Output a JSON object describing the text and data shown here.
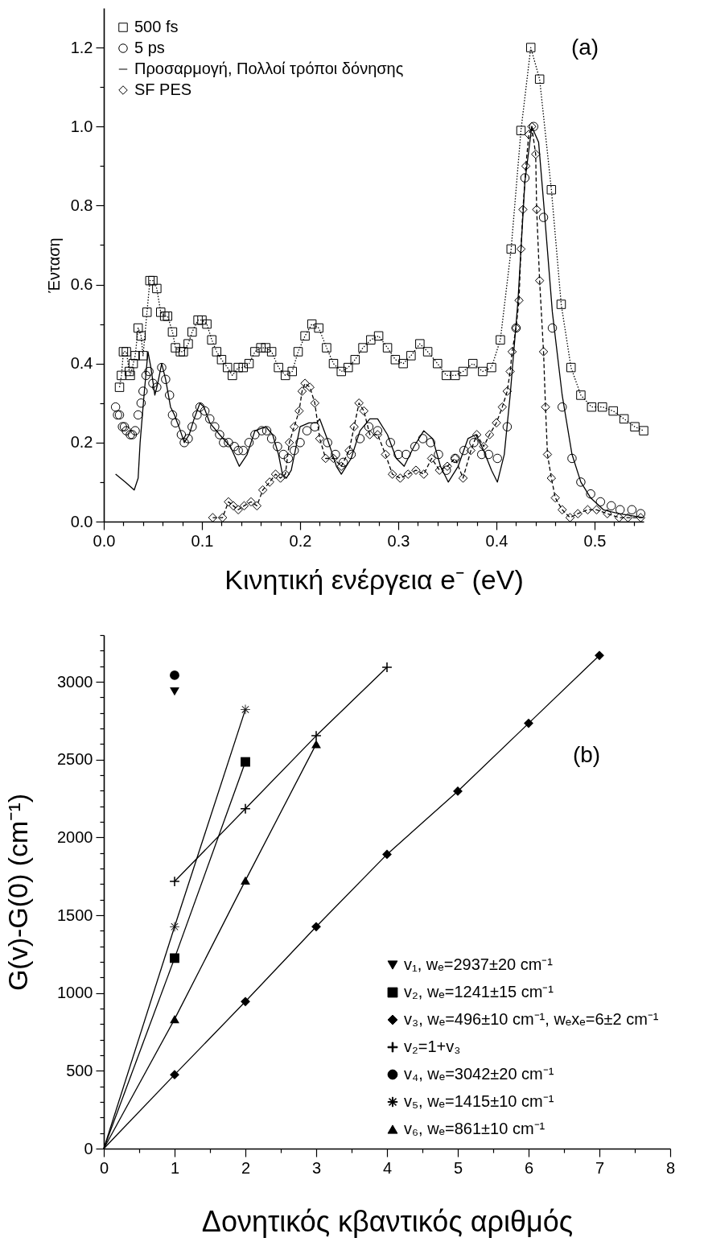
{
  "chart_data": [
    {
      "type": "line",
      "xlabel": "Κινητική ενέργεια e⁻ (eV)",
      "ylabel": "Ένταση",
      "xlim": [
        0,
        0.55
      ],
      "ylim": [
        0,
        1.3
      ],
      "xticks": [
        {
          "value": 0,
          "label": "0.0"
        },
        {
          "value": 0.02,
          "label": null
        },
        {
          "value": 0.04,
          "label": null
        },
        {
          "value": 0.06,
          "label": null
        },
        {
          "value": 0.08,
          "label": null
        },
        0.1,
        {
          "value": 0.12,
          "label": null
        },
        {
          "value": 0.14,
          "label": null
        },
        {
          "value": 0.16,
          "label": null
        },
        {
          "value": 0.18,
          "label": null
        },
        0.2,
        {
          "value": 0.22,
          "label": null
        },
        {
          "value": 0.24,
          "label": null
        },
        {
          "value": 0.26,
          "label": null
        },
        {
          "value": 0.28,
          "label": null
        },
        0.3,
        {
          "value": 0.32,
          "label": null
        },
        {
          "value": 0.34,
          "label": null
        },
        {
          "value": 0.36,
          "label": null
        },
        {
          "value": 0.38,
          "label": null
        },
        0.4,
        {
          "value": 0.42,
          "label": null
        },
        {
          "value": 0.44,
          "label": null
        },
        {
          "value": 0.46,
          "label": null
        },
        {
          "value": 0.48,
          "label": null
        },
        0.5,
        {
          "value": 0.52,
          "label": null
        },
        {
          "value": 0.54,
          "label": null
        }
      ],
      "yticks": [
        {
          "value": 0,
          "label": "0.0"
        },
        {
          "value": 0.1,
          "label": null
        },
        0.2,
        {
          "value": 0.3,
          "label": null
        },
        0.4,
        {
          "value": 0.5,
          "label": null
        },
        0.6,
        {
          "value": 0.7,
          "label": null
        },
        0.8,
        {
          "value": 0.9,
          "label": null
        },
        {
          "value": 1,
          "label": "1.0"
        },
        {
          "value": 1.1,
          "label": null
        },
        1.2
      ],
      "legend": "top left",
      "annotations": [
        "(a)"
      ],
      "series": [
        {
          "name": "500 fs",
          "type": "line",
          "marker": "square",
          "line_style": "dotted",
          "color": "#000000",
          "x": [
            0.016,
            0.018,
            0.02,
            0.023,
            0.026,
            0.027,
            0.03,
            0.032,
            0.035,
            0.038,
            0.04,
            0.044,
            0.047,
            0.05,
            0.054,
            0.058,
            0.062,
            0.065,
            0.07,
            0.073,
            0.078,
            0.081,
            0.086,
            0.09,
            0.096,
            0.1,
            0.105,
            0.11,
            0.115,
            0.12,
            0.126,
            0.131,
            0.137,
            0.142,
            0.148,
            0.154,
            0.16,
            0.165,
            0.171,
            0.178,
            0.185,
            0.192,
            0.198,
            0.205,
            0.212,
            0.219,
            0.227,
            0.234,
            0.242,
            0.249,
            0.256,
            0.264,
            0.272,
            0.28,
            0.289,
            0.297,
            0.305,
            0.313,
            0.322,
            0.33,
            0.34,
            0.349,
            0.358,
            0.366,
            0.376,
            0.386,
            0.395,
            0.404,
            0.415,
            0.425,
            0.435,
            0.444,
            0.456,
            0.466,
            0.476,
            0.486,
            0.497,
            0.508,
            0.519,
            0.53,
            0.541,
            0.55
          ],
          "values": [
            0.34,
            0.37,
            0.43,
            0.43,
            0.38,
            0.37,
            0.4,
            0.42,
            0.49,
            0.47,
            0.42,
            0.53,
            0.61,
            0.61,
            0.59,
            0.53,
            0.52,
            0.52,
            0.48,
            0.44,
            0.43,
            0.43,
            0.45,
            0.48,
            0.51,
            0.51,
            0.5,
            0.46,
            0.43,
            0.41,
            0.39,
            0.37,
            0.39,
            0.39,
            0.4,
            0.43,
            0.44,
            0.44,
            0.43,
            0.39,
            0.37,
            0.38,
            0.43,
            0.47,
            0.5,
            0.49,
            0.44,
            0.4,
            0.38,
            0.39,
            0.41,
            0.44,
            0.46,
            0.47,
            0.44,
            0.41,
            0.4,
            0.42,
            0.45,
            0.43,
            0.4,
            0.37,
            0.37,
            0.38,
            0.4,
            0.38,
            0.39,
            0.46,
            0.69,
            0.99,
            1.2,
            1.12,
            0.84,
            0.55,
            0.39,
            0.32,
            0.29,
            0.29,
            0.28,
            0.26,
            0.24,
            0.23
          ]
        },
        {
          "name": "5 ps",
          "type": "scatter",
          "marker": "circle",
          "color": "#000000",
          "x": [
            0.012,
            0.014,
            0.016,
            0.019,
            0.021,
            0.023,
            0.027,
            0.029,
            0.032,
            0.035,
            0.038,
            0.04,
            0.043,
            0.046,
            0.05,
            0.054,
            0.059,
            0.063,
            0.067,
            0.07,
            0.073,
            0.079,
            0.082,
            0.086,
            0.09,
            0.095,
            0.098,
            0.103,
            0.108,
            0.113,
            0.118,
            0.122,
            0.127,
            0.133,
            0.137,
            0.142,
            0.148,
            0.154,
            0.161,
            0.166,
            0.171,
            0.177,
            0.183,
            0.188,
            0.194,
            0.2,
            0.207,
            0.215,
            0.228,
            0.236,
            0.244,
            0.252,
            0.261,
            0.27,
            0.279,
            0.292,
            0.3,
            0.308,
            0.317,
            0.325,
            0.333,
            0.341,
            0.349,
            0.358,
            0.367,
            0.377,
            0.385,
            0.392,
            0.401,
            0.411,
            0.42,
            0.429,
            0.438,
            0.448,
            0.457,
            0.467,
            0.477,
            0.486,
            0.496,
            0.506,
            0.517,
            0.526,
            0.538,
            0.547
          ],
          "values": [
            0.29,
            0.27,
            0.27,
            0.24,
            0.24,
            0.23,
            0.22,
            0.22,
            0.23,
            0.27,
            0.3,
            0.33,
            0.37,
            0.38,
            0.35,
            0.34,
            0.39,
            0.36,
            0.32,
            0.27,
            0.25,
            0.22,
            0.2,
            0.21,
            0.24,
            0.27,
            0.29,
            0.28,
            0.26,
            0.24,
            0.22,
            0.2,
            0.2,
            0.19,
            0.18,
            0.18,
            0.2,
            0.22,
            0.23,
            0.23,
            0.21,
            0.19,
            0.17,
            0.16,
            0.18,
            0.2,
            0.23,
            0.24,
            0.2,
            0.17,
            0.15,
            0.17,
            0.21,
            0.24,
            0.23,
            0.2,
            0.17,
            0.17,
            0.19,
            0.21,
            0.2,
            0.17,
            0.13,
            0.16,
            0.18,
            0.2,
            0.17,
            0.17,
            0.16,
            0.24,
            0.49,
            0.87,
            1.0,
            0.77,
            0.49,
            0.29,
            0.16,
            0.1,
            0.07,
            0.05,
            0.04,
            0.03,
            0.03,
            0.02
          ]
        },
        {
          "name": "Προσαρμογή, Πολλοί τρόποι δόνησης",
          "type": "line",
          "marker": "none",
          "line_style": "solid",
          "color": "#000000",
          "x": [
            0.012,
            0.022,
            0.031,
            0.035,
            0.037,
            0.041,
            0.045,
            0.048,
            0.052,
            0.055,
            0.059,
            0.063,
            0.068,
            0.072,
            0.078,
            0.082,
            0.087,
            0.092,
            0.098,
            0.102,
            0.108,
            0.118,
            0.129,
            0.138,
            0.146,
            0.154,
            0.165,
            0.172,
            0.178,
            0.182,
            0.186,
            0.191,
            0.2,
            0.209,
            0.217,
            0.22,
            0.229,
            0.237,
            0.242,
            0.252,
            0.261,
            0.271,
            0.279,
            0.289,
            0.298,
            0.306,
            0.316,
            0.326,
            0.335,
            0.343,
            0.351,
            0.361,
            0.371,
            0.379,
            0.387,
            0.395,
            0.401,
            0.408,
            0.414,
            0.422,
            0.429,
            0.436,
            0.443,
            0.449,
            0.457,
            0.467,
            0.477,
            0.486,
            0.496,
            0.509,
            0.525,
            0.55
          ],
          "values": [
            0.12,
            0.1,
            0.08,
            0.11,
            0.2,
            0.32,
            0.43,
            0.39,
            0.32,
            0.35,
            0.4,
            0.36,
            0.29,
            0.27,
            0.23,
            0.2,
            0.22,
            0.26,
            0.3,
            0.29,
            0.25,
            0.22,
            0.19,
            0.14,
            0.17,
            0.23,
            0.24,
            0.22,
            0.17,
            0.12,
            0.11,
            0.13,
            0.24,
            0.25,
            0.25,
            0.26,
            0.2,
            0.14,
            0.12,
            0.16,
            0.23,
            0.26,
            0.26,
            0.22,
            0.16,
            0.14,
            0.19,
            0.23,
            0.21,
            0.14,
            0.1,
            0.14,
            0.21,
            0.22,
            0.18,
            0.13,
            0.1,
            0.17,
            0.32,
            0.56,
            0.86,
            1.0,
            0.96,
            0.78,
            0.53,
            0.32,
            0.17,
            0.1,
            0.06,
            0.03,
            0.02,
            0.01
          ]
        },
        {
          "name": "SF PES",
          "type": "line",
          "marker": "diamond",
          "line_style": "dashed",
          "color": "#000000",
          "x": [
            0.111,
            0.121,
            0.127,
            0.132,
            0.137,
            0.143,
            0.15,
            0.156,
            0.162,
            0.169,
            0.175,
            0.18,
            0.185,
            0.189,
            0.194,
            0.199,
            0.202,
            0.205,
            0.21,
            0.215,
            0.22,
            0.226,
            0.234,
            0.242,
            0.25,
            0.255,
            0.26,
            0.265,
            0.271,
            0.279,
            0.287,
            0.294,
            0.302,
            0.31,
            0.318,
            0.326,
            0.334,
            0.342,
            0.35,
            0.358,
            0.366,
            0.374,
            0.38,
            0.387,
            0.393,
            0.4,
            0.406,
            0.411,
            0.414,
            0.416,
            0.42,
            0.423,
            0.425,
            0.427,
            0.43,
            0.433,
            0.436,
            0.44,
            0.441,
            0.444,
            0.448,
            0.45,
            0.452,
            0.456,
            0.46,
            0.467,
            0.475,
            0.483,
            0.493,
            0.502,
            0.513,
            0.525,
            0.534,
            0.547
          ],
          "values": [
            0.01,
            0.01,
            0.05,
            0.04,
            0.03,
            0.04,
            0.05,
            0.04,
            0.08,
            0.1,
            0.12,
            0.11,
            0.12,
            0.2,
            0.24,
            0.28,
            0.33,
            0.35,
            0.34,
            0.3,
            0.21,
            0.16,
            0.16,
            0.14,
            0.18,
            0.24,
            0.3,
            0.28,
            0.22,
            0.22,
            0.17,
            0.12,
            0.11,
            0.12,
            0.13,
            0.12,
            0.16,
            0.13,
            0.14,
            0.16,
            0.11,
            0.18,
            0.22,
            0.19,
            0.22,
            0.25,
            0.29,
            0.33,
            0.38,
            0.43,
            0.49,
            0.56,
            0.69,
            0.79,
            0.9,
            0.98,
            1.0,
            0.93,
            0.79,
            0.61,
            0.43,
            0.29,
            0.17,
            0.11,
            0.06,
            0.03,
            0.01,
            0.02,
            0.03,
            0.03,
            0.02,
            0.01,
            0.01,
            0.01
          ]
        }
      ]
    },
    {
      "type": "line",
      "xlabel": "Δονητικός κβαντικός αριθμός",
      "ylabel": "G(v)-G(0) (cm⁻¹)",
      "xlim": [
        0,
        8
      ],
      "ylim": [
        0,
        3300
      ],
      "xticks": [
        0,
        {
          "value": 0.5,
          "label": null
        },
        1,
        {
          "value": 1.5,
          "label": null
        },
        2,
        {
          "value": 2.5,
          "label": null
        },
        3,
        {
          "value": 3.5,
          "label": null
        },
        4,
        {
          "value": 4.5,
          "label": null
        },
        5,
        {
          "value": 5.5,
          "label": null
        },
        6,
        {
          "value": 6.5,
          "label": null
        },
        7,
        {
          "value": 7.5,
          "label": null
        },
        8
      ],
      "yticks": [
        0,
        {
          "value": 100,
          "label": null
        },
        {
          "value": 200,
          "label": null
        },
        {
          "value": 300,
          "label": null
        },
        {
          "value": 400,
          "label": null
        },
        500,
        {
          "value": 600,
          "label": null
        },
        {
          "value": 700,
          "label": null
        },
        {
          "value": 800,
          "label": null
        },
        {
          "value": 900,
          "label": null
        },
        1000,
        {
          "value": 1100,
          "label": null
        },
        {
          "value": 1200,
          "label": null
        },
        {
          "value": 1300,
          "label": null
        },
        {
          "value": 1400,
          "label": null
        },
        1500,
        {
          "value": 1600,
          "label": null
        },
        {
          "value": 1700,
          "label": null
        },
        {
          "value": 1800,
          "label": null
        },
        {
          "value": 1900,
          "label": null
        },
        2000,
        {
          "value": 2100,
          "label": null
        },
        {
          "value": 2200,
          "label": null
        },
        {
          "value": 2300,
          "label": null
        },
        {
          "value": 2400,
          "label": null
        },
        2500,
        {
          "value": 2600,
          "label": null
        },
        {
          "value": 2700,
          "label": null
        },
        {
          "value": 2800,
          "label": null
        },
        {
          "value": 2900,
          "label": null
        },
        3000,
        {
          "value": 3100,
          "label": null
        },
        {
          "value": 3200,
          "label": null
        },
        {
          "value": 3300,
          "label": null
        }
      ],
      "legend": "bottom right",
      "annotations": [
        "(b)"
      ],
      "series": [
        {
          "name": "v₁, wₑ=2937±20 cm⁻¹",
          "type": "scatter",
          "marker": "triangle-down",
          "color": "#000000",
          "x": [
            1
          ],
          "values": [
            2937
          ]
        },
        {
          "name": "v₂, wₑ=1241±15 cm⁻¹",
          "type": "line",
          "marker": "square",
          "line_style": "solid",
          "color": "#000000",
          "x": [
            1,
            2
          ],
          "values": [
            1224,
            2485
          ]
        },
        {
          "name": "v₃, wₑ=496±10 cm⁻¹, wₑxₑ=6±2 cm⁻¹",
          "type": "line",
          "marker": "diamond",
          "line_style": "solid",
          "color": "#000000",
          "x": [
            1,
            2,
            3,
            4,
            5,
            6,
            7
          ],
          "values": [
            475,
            945,
            1426,
            1891,
            2297,
            2733,
            3169
          ]
        },
        {
          "name": "v₂=1+v₃",
          "type": "line",
          "marker": "cross",
          "line_style": "solid",
          "color": "#000000",
          "x": [
            1,
            2,
            3,
            4
          ],
          "values": [
            1717,
            2184,
            2653,
            3093
          ]
        },
        {
          "name": "v₄, wₑ=3042±20 cm⁻¹",
          "type": "scatter",
          "marker": "circle",
          "color": "#000000",
          "x": [
            1
          ],
          "values": [
            3042
          ]
        },
        {
          "name": "v₅, wₑ=1415±10 cm⁻¹",
          "type": "line",
          "marker": "star",
          "line_style": "solid",
          "color": "#000000",
          "x": [
            1,
            2
          ],
          "values": [
            1426,
            2822
          ]
        },
        {
          "name": "v₆, wₑ=861±10 cm⁻¹",
          "type": "line",
          "marker": "triangle",
          "line_style": "solid",
          "color": "#000000",
          "x": [
            1,
            2,
            3
          ],
          "values": [
            832,
            1723,
            2600
          ]
        },
        {
          "type": "line",
          "marker": "none",
          "line_style": "solid",
          "color": "#000000",
          "x": [
            0,
            1
          ],
          "values": [
            0,
            1224
          ]
        },
        {
          "type": "line",
          "marker": "none",
          "line_style": "solid",
          "color": "#000000",
          "x": [
            0,
            1
          ],
          "values": [
            0,
            475
          ]
        },
        {
          "type": "line",
          "marker": "none",
          "line_style": "solid",
          "color": "#000000",
          "x": [
            0,
            1
          ],
          "values": [
            0,
            1426
          ]
        },
        {
          "type": "line",
          "marker": "none",
          "line_style": "solid",
          "color": "#000000",
          "x": [
            0,
            1
          ],
          "values": [
            0,
            832
          ]
        }
      ]
    }
  ]
}
